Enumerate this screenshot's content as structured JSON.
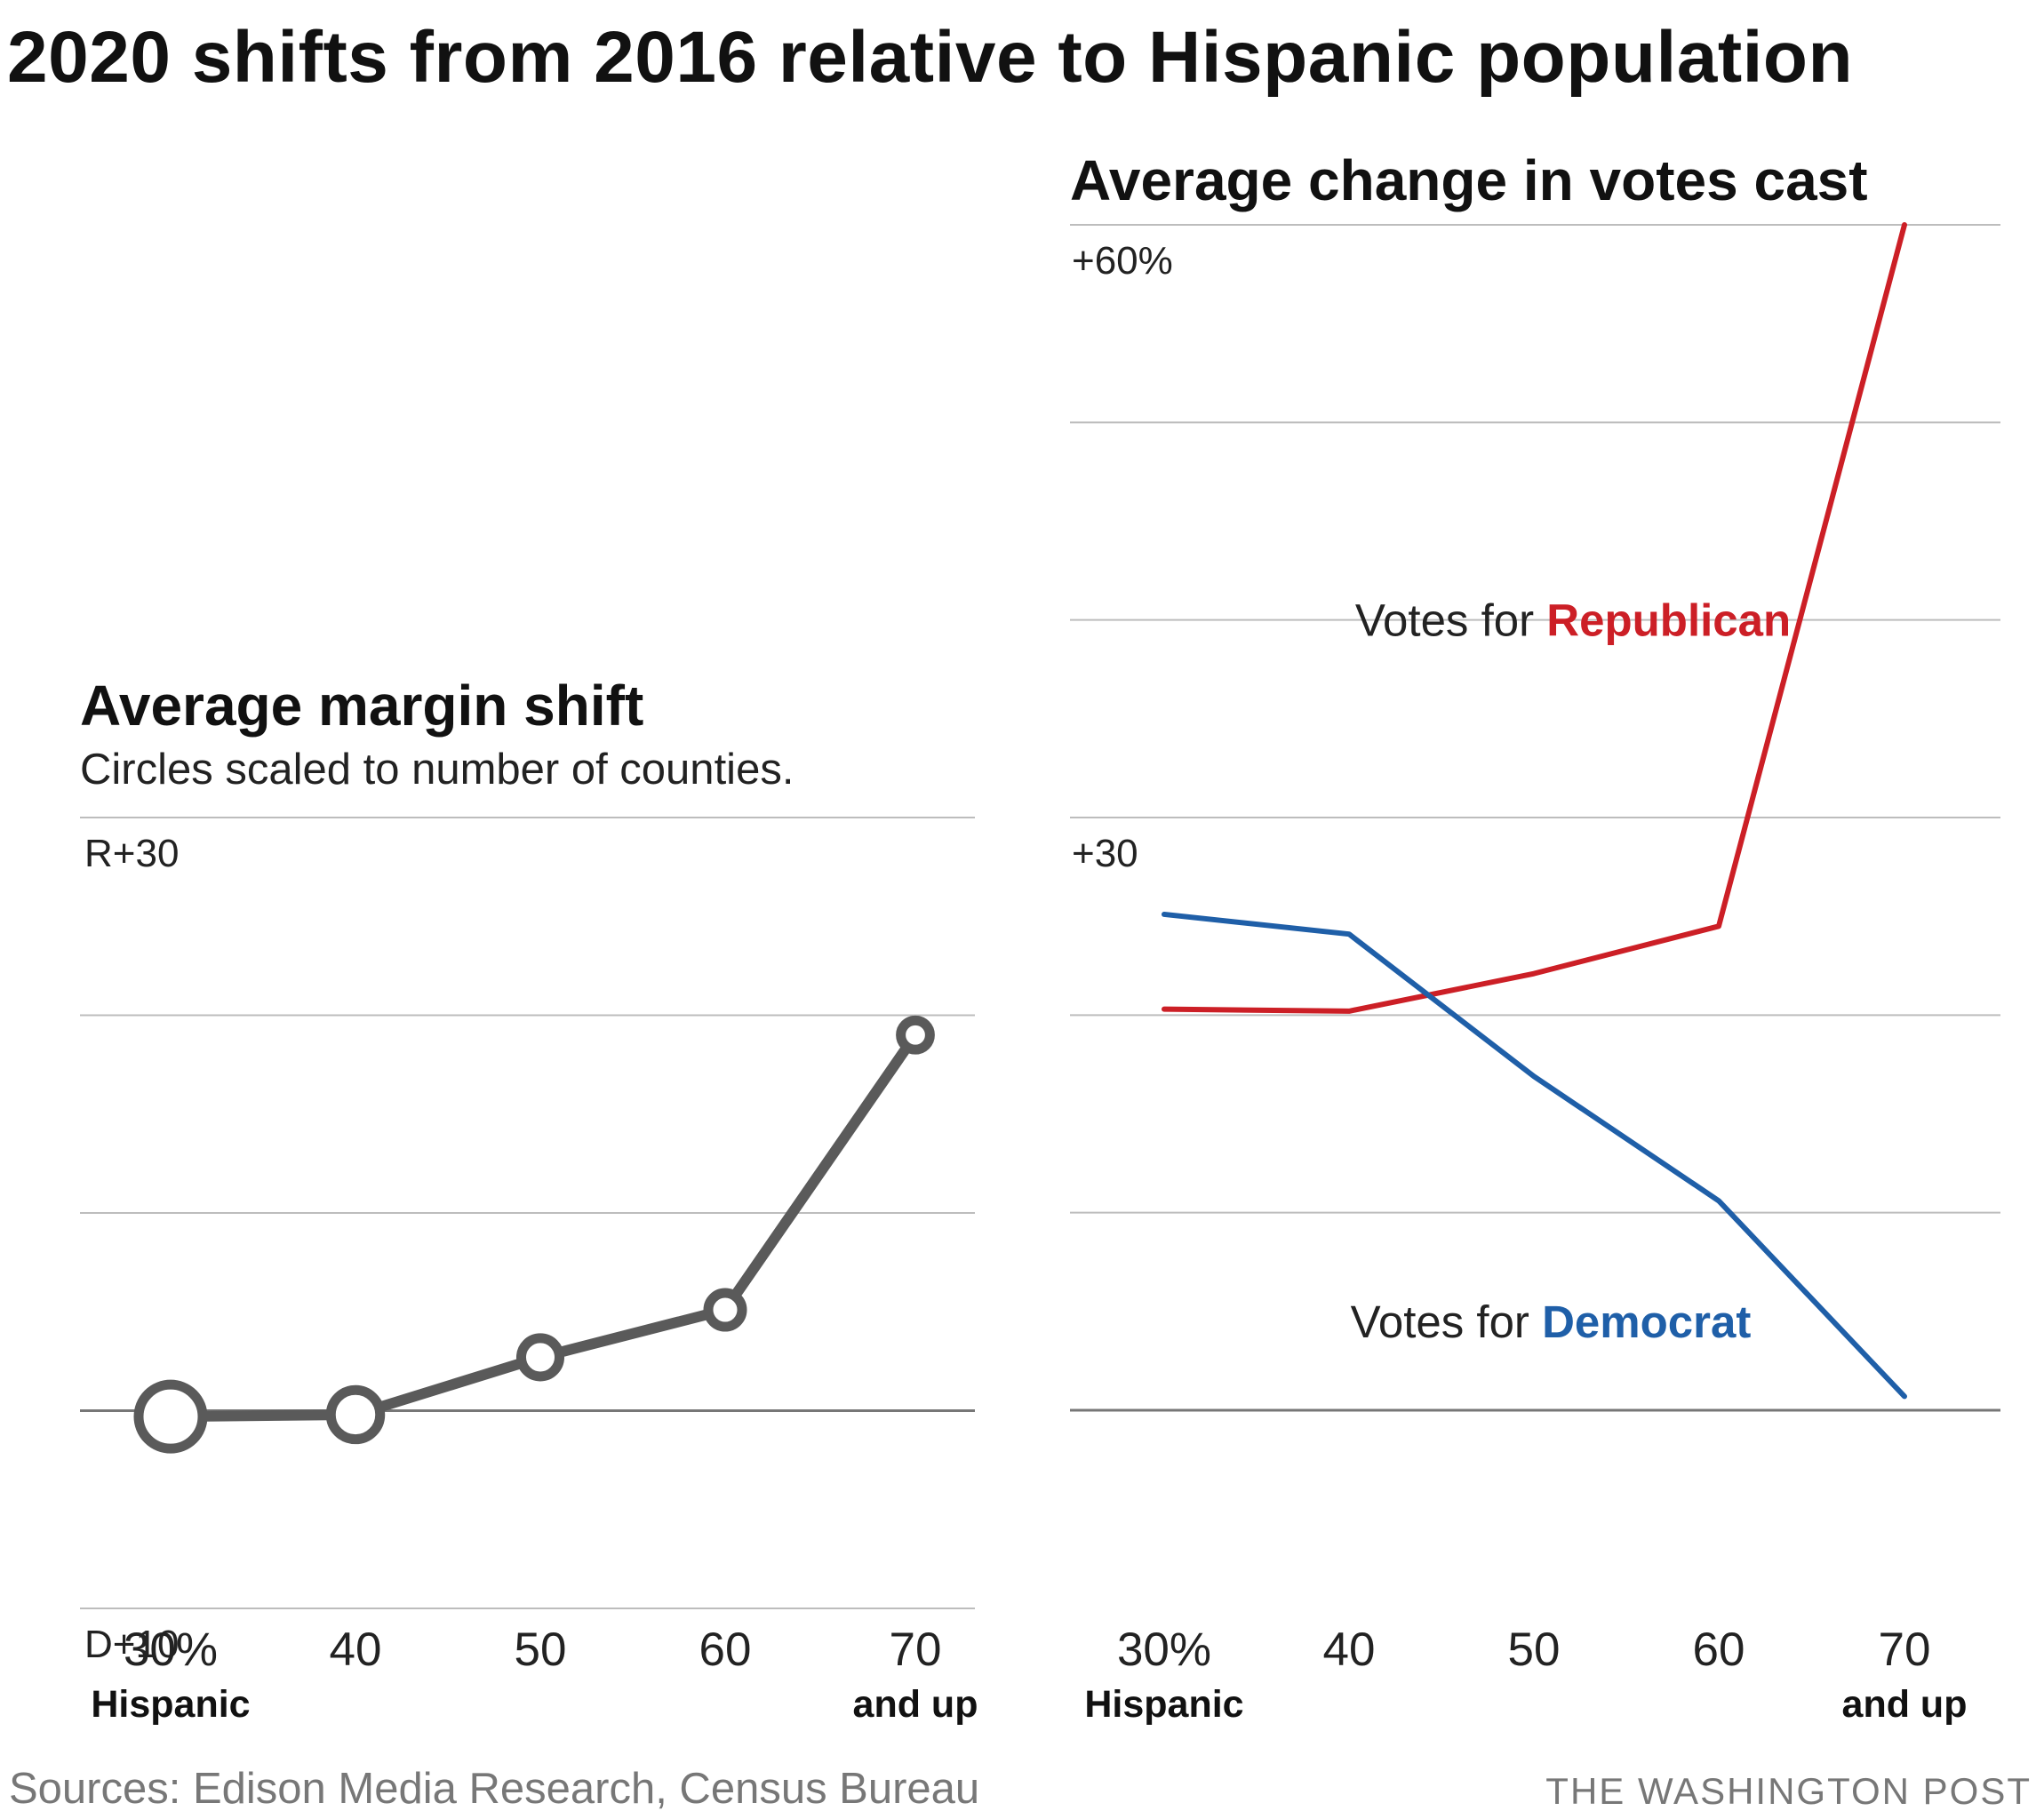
{
  "title": "2020 shifts from 2016 relative to Hispanic population",
  "footer": {
    "sources": "Sources: Edison Media Research, Census Bureau",
    "credit": "THE WASHINGTON POST"
  },
  "colors": {
    "grid": "#bdbdbd",
    "zero_line": "#777777",
    "margin_line": "#5a5a5a",
    "republican": "#cc1f26",
    "democrat": "#1f5fa8"
  },
  "chart_data": [
    {
      "type": "line",
      "title": "Average margin shift",
      "subtitle": "Circles scaled to number of counties.",
      "x_labels": [
        "30%",
        "40",
        "50",
        "60",
        "70"
      ],
      "x_sublabels": [
        "Hispanic",
        "",
        "",
        "",
        "and up"
      ],
      "y_tick_labels": [
        {
          "value": 30,
          "label": "R+30"
        },
        {
          "value": -10,
          "label": "D+10"
        }
      ],
      "ylim": [
        -10,
        30
      ],
      "grid_values": [
        -10,
        0,
        10,
        20,
        30
      ],
      "zero_value": 0,
      "series": [
        {
          "values": [
            -0.3,
            -0.2,
            2.7,
            5.1,
            19.0
          ],
          "counties": [
            100,
            55,
            30,
            22,
            15
          ]
        }
      ]
    },
    {
      "type": "line",
      "title": "Average change in votes cast",
      "x_labels": [
        "30%",
        "40",
        "50",
        "60",
        "70"
      ],
      "x_sublabels": [
        "Hispanic",
        "",
        "",
        "",
        "and up"
      ],
      "y_tick_labels": [
        {
          "value": 60,
          "label": "+60%"
        },
        {
          "value": 30,
          "label": "+30"
        }
      ],
      "ylim": [
        0,
        60
      ],
      "grid_values": [
        0,
        10,
        20,
        30,
        40,
        50,
        60
      ],
      "zero_value": 0,
      "series": [
        {
          "name": "Republican",
          "label_prefix": "Votes for ",
          "label_value": 40,
          "values": [
            20.3,
            20.2,
            22.1,
            24.5,
            60.0
          ]
        },
        {
          "name": "Democrat",
          "label_prefix": "Votes for ",
          "label_value": 4.5,
          "values": [
            25.1,
            24.1,
            16.9,
            10.6,
            0.7
          ]
        }
      ]
    }
  ]
}
